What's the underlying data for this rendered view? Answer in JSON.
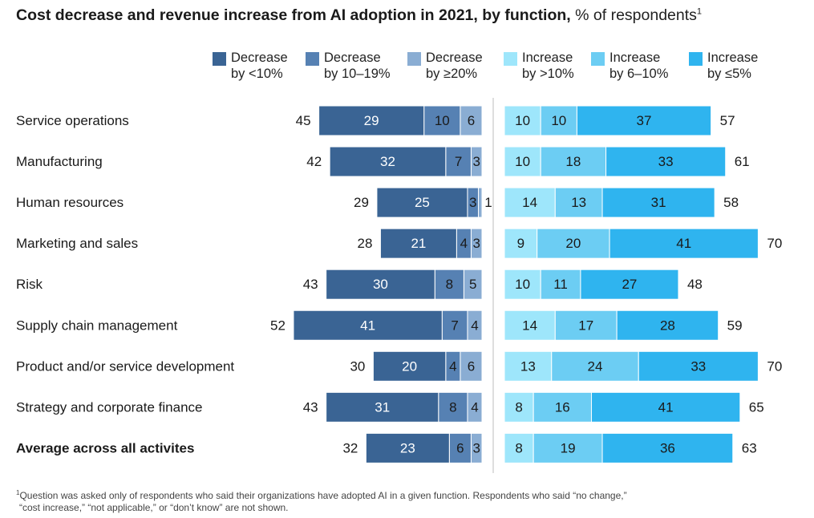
{
  "title": {
    "main": "Cost decrease and revenue increase from AI adoption in 2021, by function,",
    "sub": " % of respondents",
    "sup": "1"
  },
  "footnote": {
    "sup": "1",
    "line1": "Question was asked only of respondents who said their organizations have adopted AI in a given function. Respondents who said “no change,”",
    "line2": "“cost increase,” “not applicable,” or “don’t know” are not shown."
  },
  "legend": [
    {
      "line1": "Decrease",
      "line2": "by <10%",
      "color": "#3a6494"
    },
    {
      "line1": "Decrease",
      "line2": "by 10–19%",
      "color": "#5681b3"
    },
    {
      "line1": "Decrease",
      "line2": "by ≥20%",
      "color": "#8aadd3"
    },
    {
      "line1": "Increase",
      "line2": "by >10%",
      "color": "#9ee6fb"
    },
    {
      "line1": "Increase",
      "line2": "by 6–10%",
      "color": "#6ccdf3"
    },
    {
      "line1": "Increase",
      "line2": "by ≤5%",
      "color": "#2fb4ef"
    }
  ],
  "chart_data": {
    "type": "bar",
    "orientation": "horizontal diverging stacked",
    "categories": [
      "Service operations",
      "Manufacturing",
      "Human resources",
      "Marketing and sales",
      "Risk",
      "Supply chain management",
      "Product and/or service development",
      "Strategy and corporate finance",
      "Average across all activites"
    ],
    "bold_category": "Average across all activites",
    "series": [
      {
        "name": "Decrease by <10%",
        "side": "decrease",
        "color": "#3a6494",
        "values": [
          29,
          32,
          25,
          21,
          30,
          41,
          20,
          31,
          23
        ]
      },
      {
        "name": "Decrease by 10–19%",
        "side": "decrease",
        "color": "#5681b3",
        "values": [
          10,
          7,
          3,
          4,
          8,
          7,
          4,
          8,
          6
        ]
      },
      {
        "name": "Decrease by ≥20%",
        "side": "decrease",
        "color": "#8aadd3",
        "values": [
          6,
          3,
          1,
          3,
          5,
          4,
          6,
          4,
          3
        ]
      },
      {
        "name": "Increase by >10%",
        "side": "increase",
        "color": "#9ee6fb",
        "values": [
          10,
          10,
          14,
          9,
          10,
          14,
          13,
          8,
          8
        ]
      },
      {
        "name": "Increase by 6–10%",
        "side": "increase",
        "color": "#6ccdf3",
        "values": [
          10,
          18,
          13,
          20,
          11,
          17,
          24,
          16,
          19
        ]
      },
      {
        "name": "Increase by ≤5%",
        "side": "increase",
        "color": "#2fb4ef",
        "values": [
          37,
          33,
          31,
          41,
          27,
          28,
          33,
          41,
          36
        ]
      }
    ],
    "decrease_totals": [
      45,
      42,
      29,
      28,
      43,
      52,
      30,
      43,
      32
    ],
    "increase_totals": [
      57,
      61,
      58,
      70,
      48,
      59,
      70,
      65,
      63
    ]
  }
}
